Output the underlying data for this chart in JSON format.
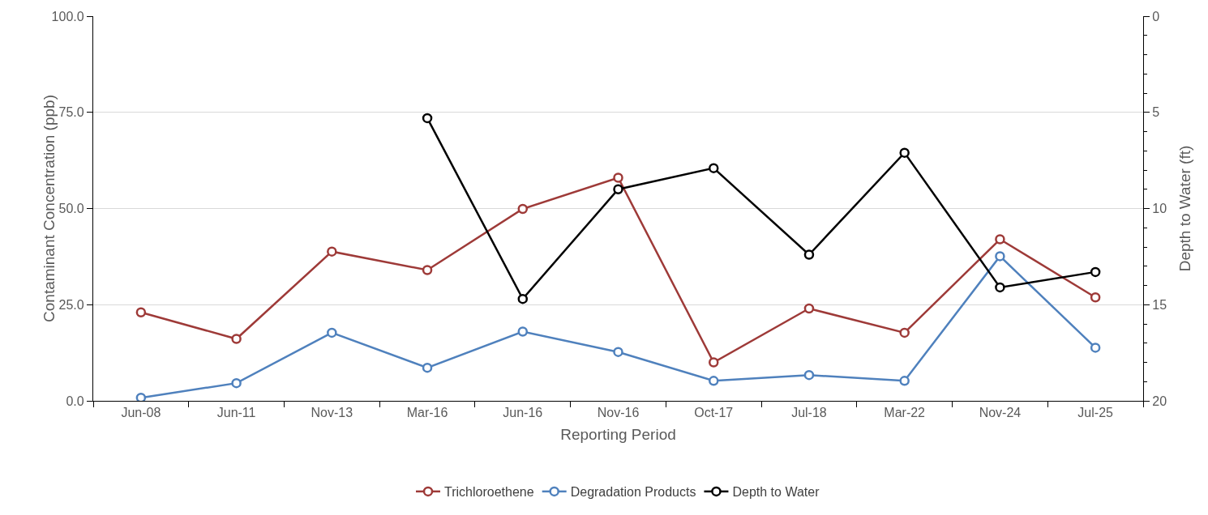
{
  "chart_data": {
    "type": "line",
    "xlabel": "Reporting Period",
    "ylabel": "Contaminant Concentration (ppb)",
    "y2label": "Depth to Water (ft)",
    "categories": [
      "Jun-08",
      "Jun-11",
      "Nov-13",
      "Mar-16",
      "Jun-16",
      "Nov-16",
      "Oct-17",
      "Jul-18",
      "Mar-22",
      "Nov-24",
      "Jul-25"
    ],
    "series": [
      {
        "name": "Trichloroethene",
        "color": "#9e3a38",
        "values": [
          23.0,
          16.1,
          38.8,
          34.0,
          49.9,
          58.0,
          10.0,
          24.0,
          17.7,
          42.0,
          26.9
        ]
      },
      {
        "name": "Degradation Products",
        "color": "#4f81bd",
        "values": [
          0.8,
          4.6,
          17.7,
          8.6,
          18.0,
          12.7,
          5.2,
          6.7,
          5.2,
          37.6,
          13.8
        ]
      },
      {
        "name": "Depth to Water",
        "color": "#000000",
        "axis": "y2",
        "values": [
          null,
          null,
          null,
          5.3,
          14.7,
          9.0,
          7.9,
          12.4,
          7.1,
          14.1,
          13.3
        ]
      }
    ],
    "ylim": [
      0,
      100
    ],
    "yticks": [
      {
        "value": 0,
        "label": "0.0"
      },
      {
        "value": 25,
        "label": "25.0"
      },
      {
        "value": 50,
        "label": "50.0"
      },
      {
        "value": 75,
        "label": "75.0"
      },
      {
        "value": 100,
        "label": "100.0"
      }
    ],
    "y2lim": [
      20,
      0
    ],
    "y2ticks": [
      0,
      5,
      10,
      15,
      20
    ],
    "grid": "y",
    "legend": "bottom",
    "marker": "circle",
    "line_style": "solid"
  }
}
